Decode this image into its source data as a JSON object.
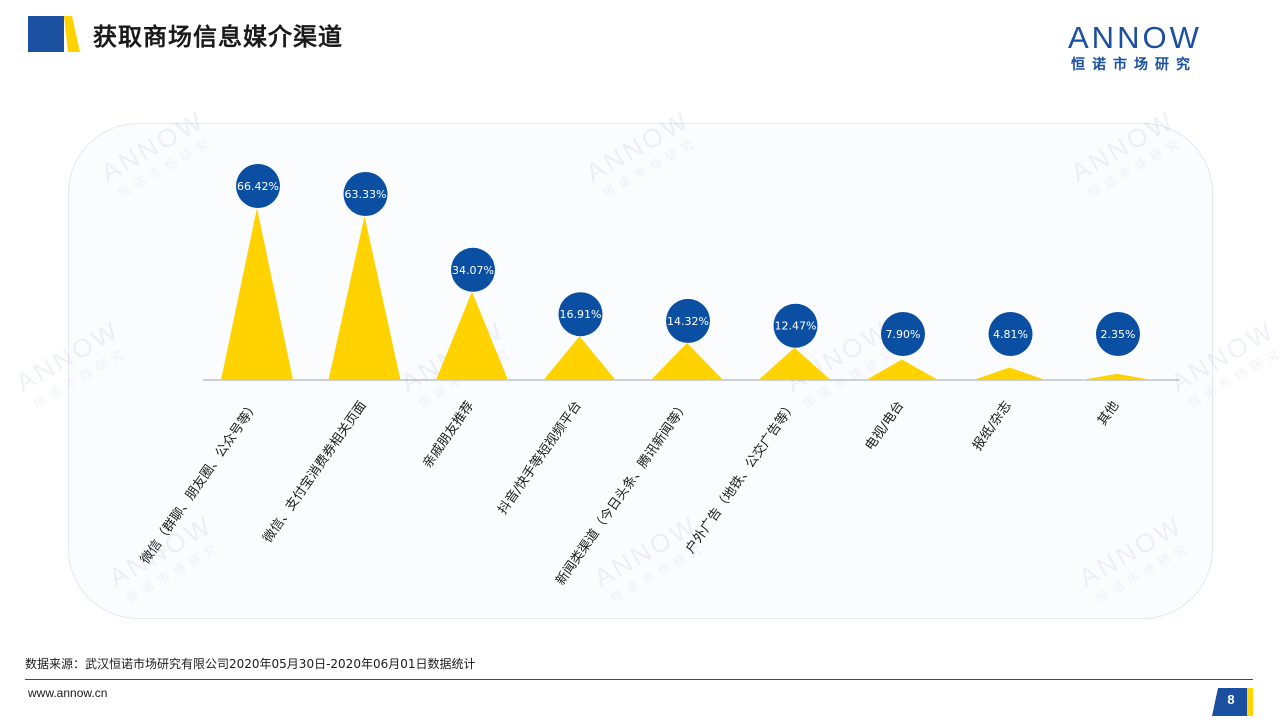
{
  "header": {
    "title": "获取商场信息媒介渠道"
  },
  "brand": {
    "logo_text": "ANNOW",
    "logo_subtitle": "恒诺市场研究",
    "primary_color": "#1b4fa0",
    "accent_color": "#ffd200"
  },
  "chart_data": {
    "type": "bar",
    "subtype": "pointed-triangle",
    "categories": [
      "微信（群聊、朋友圈、公众号等）",
      "微信、支付宝消费券相关页面",
      "亲戚朋友推荐",
      "抖音/快手等短视频平台",
      "新闻类渠道（今日头条、腾讯新闻等）",
      "户外广告（地铁、公交广告等）",
      "电视/电台",
      "报纸/杂志",
      "其他"
    ],
    "values": [
      66.42,
      63.33,
      34.07,
      16.91,
      14.32,
      12.47,
      7.9,
      4.81,
      2.35
    ],
    "value_labels": [
      "66.42%",
      "63.33%",
      "34.07%",
      "16.91%",
      "14.32%",
      "12.47%",
      "7.90%",
      "4.81%",
      "2.35%"
    ],
    "unit": "%",
    "bar_color": "#ffd200",
    "label_bubble_color": "#0b4fa3"
  },
  "footer": {
    "source": "数据来源：武汉恒诺市场研究有限公司2020年05月30日-2020年06月01日数据统计",
    "url": "www.annow.cn",
    "page": "8"
  },
  "watermark": {
    "word": "ANNOW",
    "sub": "恒诺市场研究"
  }
}
